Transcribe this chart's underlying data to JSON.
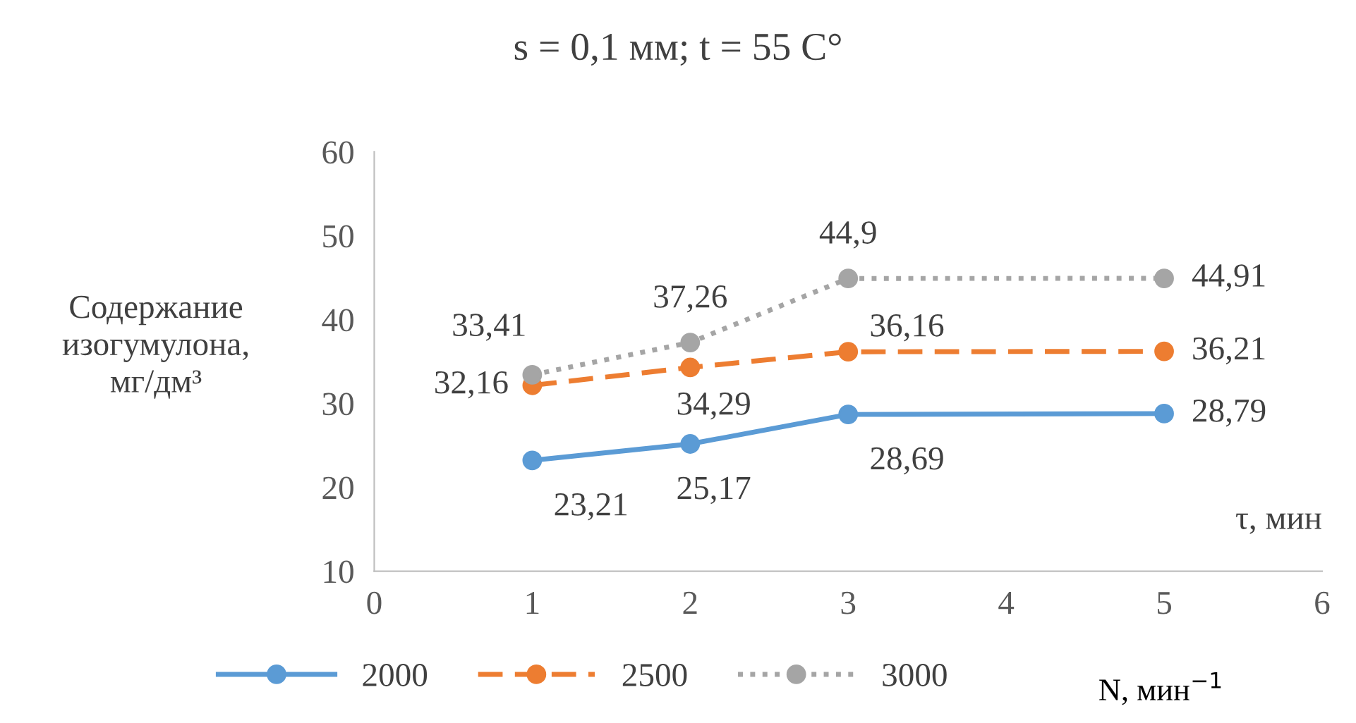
{
  "chart_data": {
    "type": "line",
    "title": "s = 0,1 мм; t = 55 С°",
    "xlabel": "τ, мин",
    "ylabel": "Содержание\nизогумулона,\nмг/дм³",
    "legend_title": "N, мин$^{−1}$",
    "x": [
      1,
      2,
      3,
      5
    ],
    "series": [
      {
        "name": "2000",
        "color": "#5b9bd5",
        "line_style": "solid",
        "values": [
          23.21,
          25.17,
          28.69,
          28.79
        ],
        "value_labels": [
          "23,21",
          "25,17",
          "28,69",
          "28,79"
        ]
      },
      {
        "name": "2500",
        "color": "#ed7d31",
        "line_style": "dashed",
        "values": [
          32.16,
          34.29,
          36.16,
          36.21
        ],
        "value_labels": [
          "32,16",
          "34,29",
          "36,16",
          "36,21"
        ]
      },
      {
        "name": "3000",
        "color": "#a5a5a5",
        "line_style": "dotted",
        "values": [
          33.41,
          37.26,
          44.9,
          44.91
        ],
        "value_labels": [
          "33,41",
          "37,26",
          "44,9",
          "44,91"
        ]
      }
    ],
    "xlim": [
      0,
      6
    ],
    "xticks": [
      0,
      1,
      2,
      3,
      4,
      5,
      6
    ],
    "ylim": [
      10,
      60
    ],
    "yticks": [
      10,
      20,
      30,
      40,
      50,
      60
    ],
    "marker": "circle",
    "grid": false,
    "legend": "bottom"
  }
}
